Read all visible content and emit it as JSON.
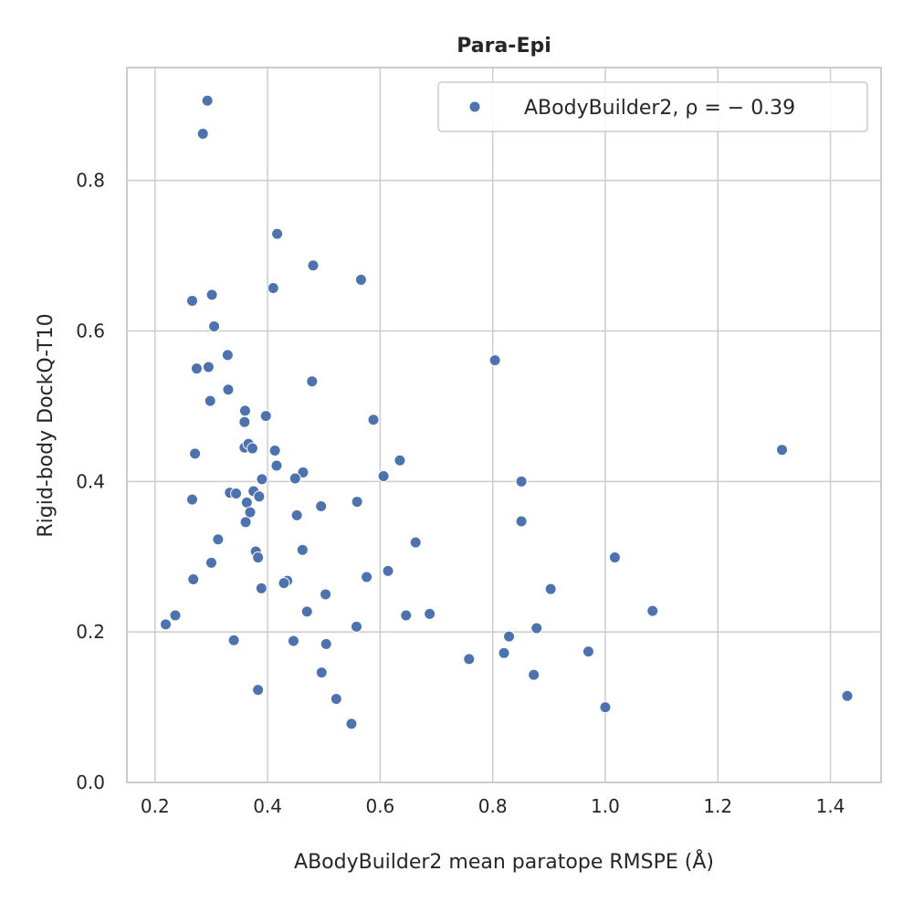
{
  "chart_data": {
    "type": "scatter",
    "title": "Para-Epi",
    "xlabel": "ABodyBuilder2 mean paratope RMSPE (Å)",
    "ylabel": "Rigid-body DockQ-T10",
    "xlim": [
      0.15,
      1.49
    ],
    "ylim": [
      0.0,
      0.95
    ],
    "x_ticks": [
      0.2,
      0.4,
      0.6,
      0.8,
      1.0,
      1.2,
      1.4
    ],
    "x_tick_labels": [
      "0.2",
      "0.4",
      "0.6",
      "0.8",
      "1.0",
      "1.2",
      "1.4"
    ],
    "y_ticks": [
      0.0,
      0.2,
      0.4,
      0.6,
      0.8
    ],
    "y_tick_labels": [
      "0.0",
      "0.2",
      "0.4",
      "0.6",
      "0.8"
    ],
    "grid": true,
    "legend_position": "top-right",
    "colors": {
      "points": "#4c72b0",
      "grid": "#cccccc",
      "frame": "#cccccc"
    },
    "series": [
      {
        "name": "ABodyBuilder2, ρ = − 0.39",
        "points": [
          [
            0.293,
            0.906
          ],
          [
            0.285,
            0.862
          ],
          [
            0.417,
            0.729
          ],
          [
            0.481,
            0.687
          ],
          [
            0.566,
            0.668
          ],
          [
            0.266,
            0.64
          ],
          [
            0.41,
            0.657
          ],
          [
            0.301,
            0.648
          ],
          [
            0.305,
            0.606
          ],
          [
            0.329,
            0.568
          ],
          [
            0.295,
            0.552
          ],
          [
            0.274,
            0.55
          ],
          [
            0.33,
            0.522
          ],
          [
            0.479,
            0.533
          ],
          [
            0.804,
            0.561
          ],
          [
            0.298,
            0.507
          ],
          [
            0.36,
            0.494
          ],
          [
            0.397,
            0.487
          ],
          [
            0.359,
            0.479
          ],
          [
            0.588,
            0.482
          ],
          [
            0.271,
            0.437
          ],
          [
            0.359,
            0.445
          ],
          [
            0.366,
            0.45
          ],
          [
            0.373,
            0.444
          ],
          [
            0.413,
            0.441
          ],
          [
            0.416,
            0.421
          ],
          [
            0.635,
            0.428
          ],
          [
            1.314,
            0.442
          ],
          [
            0.463,
            0.412
          ],
          [
            0.606,
            0.407
          ],
          [
            0.449,
            0.404
          ],
          [
            0.39,
            0.403
          ],
          [
            0.851,
            0.4
          ],
          [
            0.266,
            0.376
          ],
          [
            0.333,
            0.385
          ],
          [
            0.344,
            0.384
          ],
          [
            0.375,
            0.387
          ],
          [
            0.385,
            0.38
          ],
          [
            0.363,
            0.372
          ],
          [
            0.495,
            0.367
          ],
          [
            0.559,
            0.373
          ],
          [
            0.369,
            0.359
          ],
          [
            0.452,
            0.355
          ],
          [
            0.361,
            0.346
          ],
          [
            0.851,
            0.347
          ],
          [
            0.312,
            0.323
          ],
          [
            0.663,
            0.319
          ],
          [
            0.379,
            0.307
          ],
          [
            0.462,
            0.309
          ],
          [
            0.383,
            0.299
          ],
          [
            0.3,
            0.292
          ],
          [
            1.017,
            0.299
          ],
          [
            0.614,
            0.281
          ],
          [
            0.576,
            0.273
          ],
          [
            0.268,
            0.27
          ],
          [
            0.435,
            0.268
          ],
          [
            0.429,
            0.265
          ],
          [
            0.389,
            0.258
          ],
          [
            0.903,
            0.257
          ],
          [
            0.503,
            0.25
          ],
          [
            0.236,
            0.222
          ],
          [
            0.47,
            0.227
          ],
          [
            0.688,
            0.224
          ],
          [
            0.646,
            0.222
          ],
          [
            1.084,
            0.228
          ],
          [
            0.219,
            0.21
          ],
          [
            0.558,
            0.207
          ],
          [
            0.878,
            0.205
          ],
          [
            0.829,
            0.194
          ],
          [
            0.34,
            0.189
          ],
          [
            0.446,
            0.188
          ],
          [
            0.504,
            0.184
          ],
          [
            0.82,
            0.172
          ],
          [
            0.97,
            0.174
          ],
          [
            0.758,
            0.164
          ],
          [
            0.496,
            0.146
          ],
          [
            0.873,
            0.143
          ],
          [
            0.383,
            0.123
          ],
          [
            0.522,
            0.111
          ],
          [
            1.43,
            0.115
          ],
          [
            1.0,
            0.1
          ],
          [
            0.549,
            0.078
          ]
        ]
      }
    ]
  }
}
